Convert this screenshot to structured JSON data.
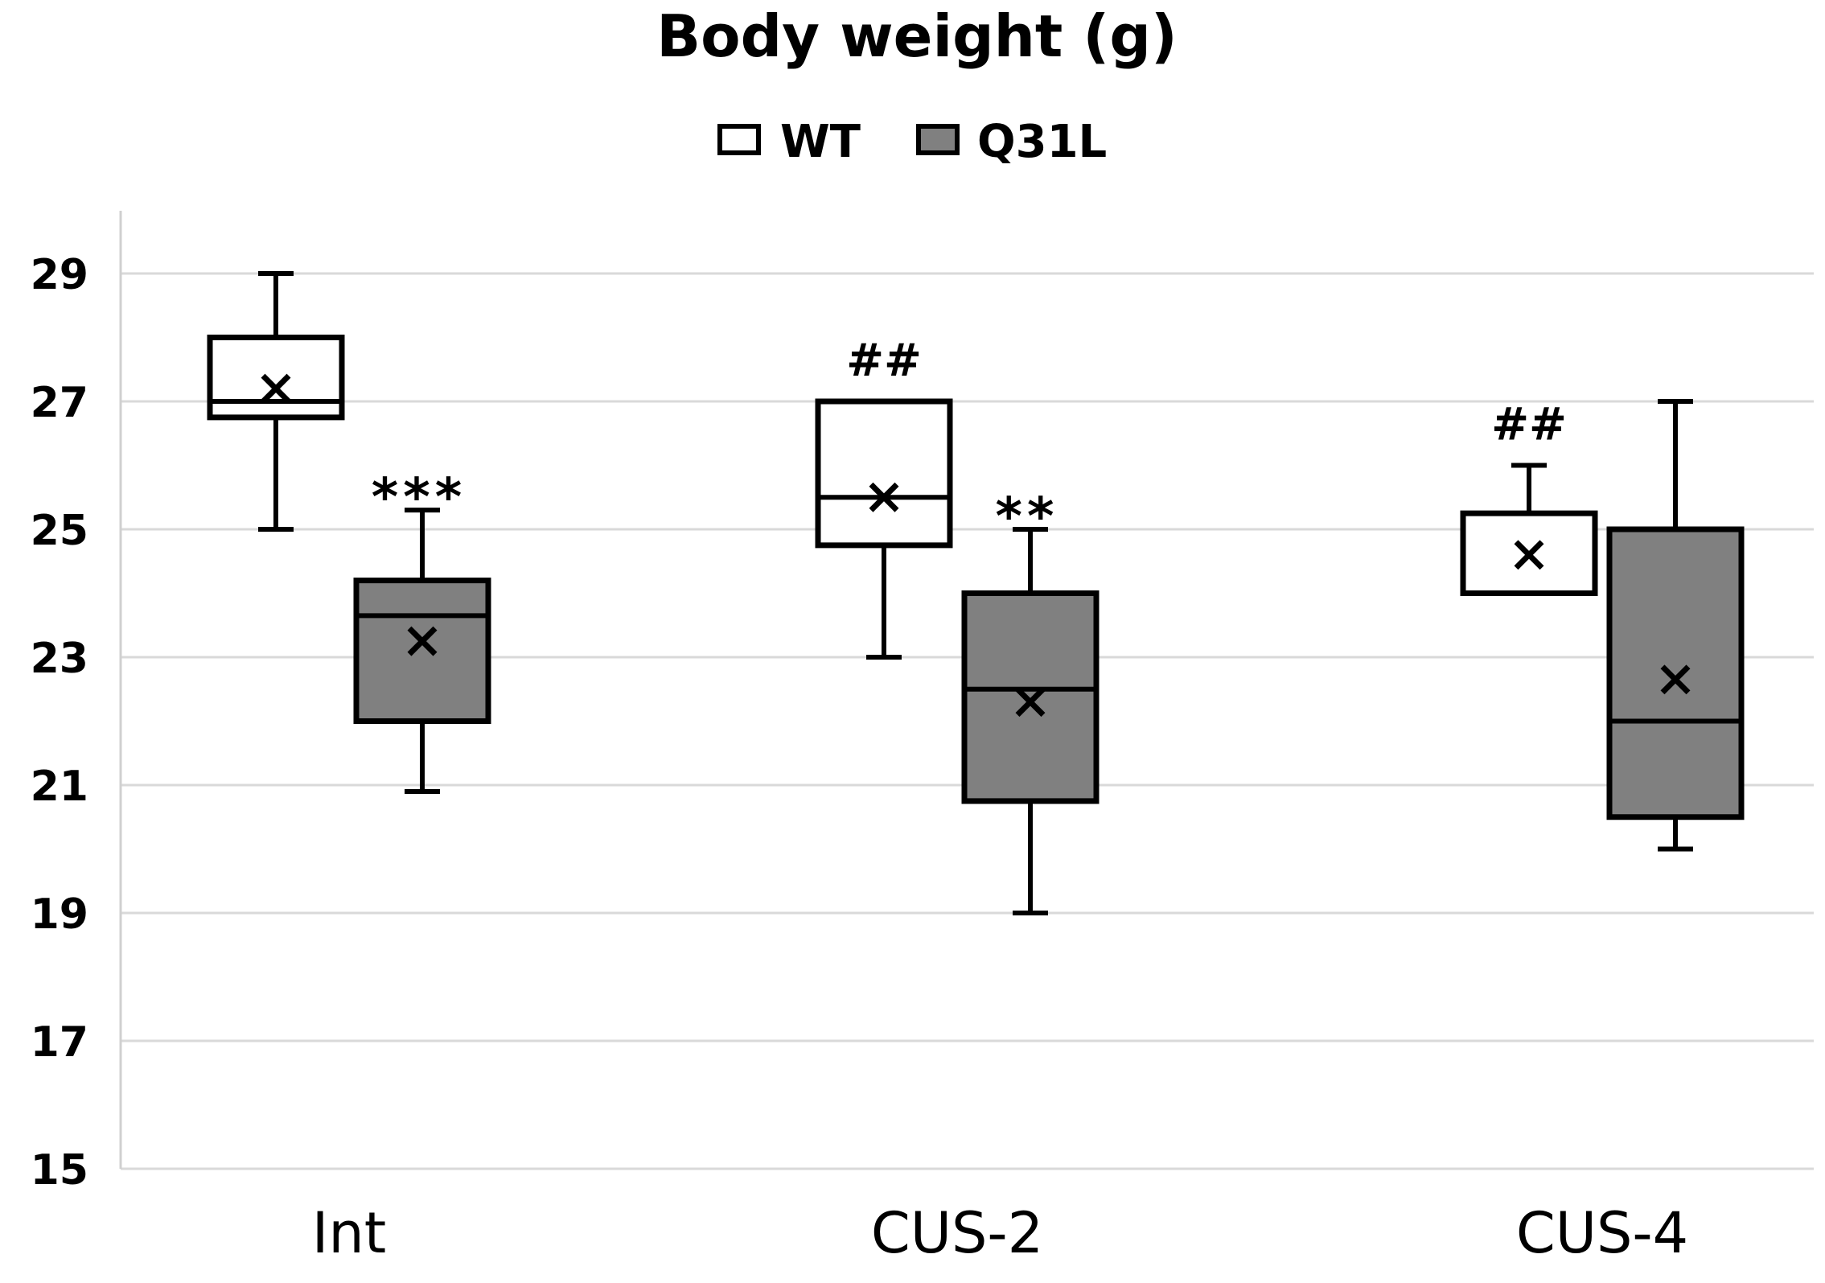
{
  "chart_data": {
    "type": "box",
    "title": "Body weight (g)",
    "xlabel": "",
    "ylabel": "",
    "ylim": [
      15,
      30
    ],
    "yticks": [
      15,
      17,
      19,
      21,
      23,
      25,
      27,
      29
    ],
    "grid": true,
    "legend_position": "top-center",
    "categories": [
      "Int",
      "CUS-2",
      "CUS-4"
    ],
    "series": [
      {
        "name": "WT",
        "color": "#ffffff",
        "boxes": [
          {
            "min": 25,
            "q1": 26.75,
            "median": 27,
            "q3": 28,
            "max": 29,
            "mean": 27.2,
            "annotation": ""
          },
          {
            "min": 23,
            "q1": 24.75,
            "median": 25.5,
            "q3": 27,
            "max": 27,
            "mean": 25.5,
            "annotation": "##"
          },
          {
            "min": 24,
            "q1": 24,
            "median": 24,
            "q3": 25.25,
            "max": 26,
            "mean": 24.6,
            "annotation": "##"
          }
        ]
      },
      {
        "name": "Q31L",
        "color": "#808080",
        "boxes": [
          {
            "min": 20.9,
            "q1": 22,
            "median": 23.65,
            "q3": 24.2,
            "max": 25.3,
            "mean": 23.25,
            "annotation": "***"
          },
          {
            "min": 19,
            "q1": 20.75,
            "median": 22.5,
            "q3": 24,
            "max": 25,
            "mean": 22.3,
            "annotation": "**"
          },
          {
            "min": 20,
            "q1": 20.5,
            "median": 22,
            "q3": 25,
            "max": 27,
            "mean": 22.65,
            "annotation": ""
          }
        ]
      }
    ]
  }
}
